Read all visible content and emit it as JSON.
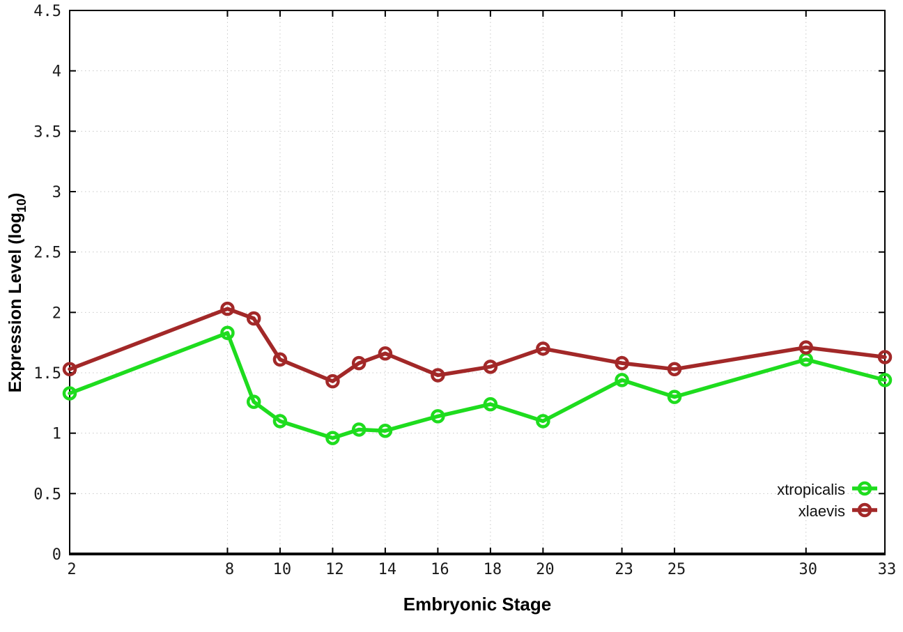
{
  "chart_data": {
    "type": "line",
    "title": "",
    "xlabel": "Embryonic Stage",
    "ylabel": "Expression Level (log10)",
    "ylabel_parts": {
      "prefix": "Expression Level (log",
      "sub": "10",
      "suffix": ")"
    },
    "x": [
      2,
      8,
      9,
      10,
      12,
      13,
      14,
      16,
      18,
      20,
      23,
      25,
      30,
      33
    ],
    "series": [
      {
        "name": "xtropicalis",
        "color": "#1edc1e",
        "values": [
          1.33,
          1.83,
          1.26,
          1.1,
          0.96,
          1.03,
          1.02,
          1.14,
          1.24,
          1.1,
          1.44,
          1.3,
          1.61,
          1.44
        ]
      },
      {
        "name": "xlaevis",
        "color": "#a22828",
        "values": [
          1.53,
          2.03,
          1.95,
          1.61,
          1.43,
          1.58,
          1.66,
          1.48,
          1.55,
          1.7,
          1.58,
          1.53,
          1.71,
          1.63
        ]
      }
    ],
    "x_range": [
      2,
      33
    ],
    "y_range": [
      0,
      4.5
    ],
    "x_ticks": [
      2,
      8,
      10,
      12,
      14,
      16,
      18,
      20,
      23,
      25,
      30,
      33
    ],
    "x_tick_labels": [
      "2",
      "8",
      "10",
      "12",
      "14",
      "16",
      "18",
      "20",
      "23",
      "25",
      "30",
      "33"
    ],
    "y_ticks": [
      0,
      0.5,
      1,
      1.5,
      2,
      2.5,
      3,
      3.5,
      4,
      4.5
    ],
    "y_tick_labels": [
      "0",
      "0.5",
      "1",
      "1.5",
      "2",
      "2.5",
      "3",
      "3.5",
      "4",
      "4.5"
    ],
    "grid": true,
    "legend_position": "inside-bottom-right",
    "marker": "open-circle"
  },
  "legend": {
    "items": [
      {
        "label": "xtropicalis",
        "series": "xtropicalis"
      },
      {
        "label": "xlaevis",
        "series": "xlaevis"
      }
    ]
  },
  "colors": {
    "grid": "#c8c8c8",
    "axis": "#000000",
    "tick_text": "#1a1a1a",
    "xtropicalis": "#1edc1e",
    "xlaevis": "#a22828"
  }
}
